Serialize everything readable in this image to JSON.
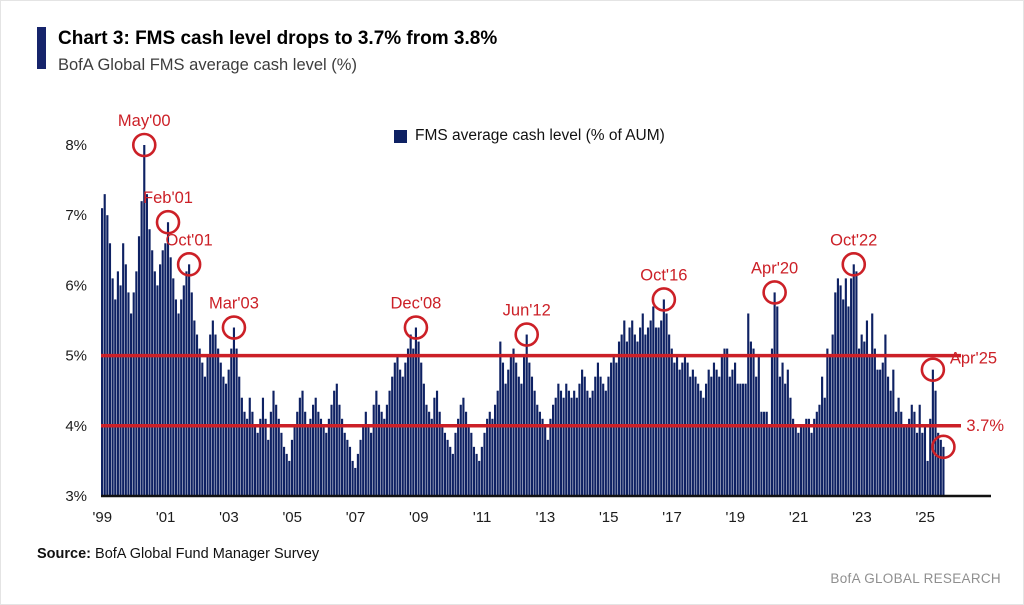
{
  "header": {
    "title": "Chart 3: FMS cash level drops to 3.7% from 3.8%",
    "subtitle": "BofA Global FMS average cash level (%)"
  },
  "legend": {
    "label": "FMS average cash level (% of AUM)"
  },
  "footer": {
    "source_label": "Source:",
    "source_text": " BofA Global Fund Manager Survey",
    "branding": "BofA GLOBAL RESEARCH"
  },
  "colors": {
    "bar": "#0e2163",
    "accent_red": "#cc2027",
    "title_accent": "#16246b"
  },
  "chart_data": {
    "type": "bar",
    "title": "FMS cash level drops to 3.7% from 3.8%",
    "xlabel": "",
    "ylabel": "",
    "ylim": [
      3,
      8
    ],
    "yticks": [
      3,
      4,
      5,
      6,
      7,
      8
    ],
    "x_start": "1999-01",
    "frequency": "monthly",
    "legend": [
      "FMS average cash level (% of AUM)"
    ],
    "bar_color": "#0e2163",
    "accent_color": "#cc2027",
    "reference_lines": [
      5.0,
      4.0
    ],
    "xticks": [
      {
        "label": "'99",
        "index": 0
      },
      {
        "label": "'01",
        "index": 24
      },
      {
        "label": "'03",
        "index": 48
      },
      {
        "label": "'05",
        "index": 72
      },
      {
        "label": "'07",
        "index": 96
      },
      {
        "label": "'09",
        "index": 120
      },
      {
        "label": "'11",
        "index": 144
      },
      {
        "label": "'13",
        "index": 168
      },
      {
        "label": "'15",
        "index": 192
      },
      {
        "label": "'17",
        "index": 216
      },
      {
        "label": "'19",
        "index": 240
      },
      {
        "label": "'21",
        "index": 264
      },
      {
        "label": "'23",
        "index": 288
      },
      {
        "label": "'25",
        "index": 312
      }
    ],
    "annotations": [
      {
        "label": "May'00",
        "index": 16,
        "value": 8.0,
        "placement": "above"
      },
      {
        "label": "Feb'01",
        "index": 25,
        "value": 6.9,
        "placement": "above"
      },
      {
        "label": "Oct'01",
        "index": 33,
        "value": 6.3,
        "placement": "above"
      },
      {
        "label": "Mar'03",
        "index": 50,
        "value": 5.4,
        "placement": "above"
      },
      {
        "label": "Dec'08",
        "index": 119,
        "value": 5.4,
        "placement": "above"
      },
      {
        "label": "Jun'12",
        "index": 161,
        "value": 5.3,
        "placement": "above"
      },
      {
        "label": "Oct'16",
        "index": 213,
        "value": 5.8,
        "placement": "above"
      },
      {
        "label": "Apr'20",
        "index": 255,
        "value": 5.9,
        "placement": "above"
      },
      {
        "label": "Oct'22",
        "index": 285,
        "value": 6.3,
        "placement": "above"
      },
      {
        "label": "Apr'25",
        "index": 315,
        "value": 4.8,
        "placement": "right",
        "dy": -12
      },
      {
        "label": "3.7%",
        "index": 319,
        "value": 3.7,
        "placement": "right",
        "dx": 6,
        "dy": -22
      }
    ],
    "values": [
      7.1,
      7.3,
      7.0,
      6.6,
      6.1,
      5.8,
      6.2,
      6.0,
      6.6,
      6.3,
      5.9,
      5.6,
      5.9,
      6.2,
      6.7,
      7.2,
      8.0,
      7.3,
      6.8,
      6.5,
      6.2,
      6.0,
      6.3,
      6.5,
      6.6,
      6.9,
      6.4,
      6.1,
      5.8,
      5.6,
      5.8,
      6.0,
      6.2,
      6.3,
      5.9,
      5.5,
      5.3,
      5.1,
      4.9,
      4.7,
      5.0,
      5.3,
      5.5,
      5.3,
      5.1,
      4.9,
      4.7,
      4.6,
      4.8,
      5.1,
      5.4,
      5.1,
      4.7,
      4.4,
      4.2,
      4.1,
      4.4,
      4.2,
      4.0,
      3.9,
      4.1,
      4.4,
      4.1,
      3.8,
      4.2,
      4.5,
      4.3,
      4.1,
      3.9,
      3.7,
      3.6,
      3.5,
      3.8,
      4.0,
      4.2,
      4.4,
      4.5,
      4.2,
      4.0,
      4.1,
      4.3,
      4.4,
      4.2,
      4.1,
      4.0,
      3.9,
      4.1,
      4.3,
      4.5,
      4.6,
      4.3,
      4.1,
      3.9,
      3.8,
      3.7,
      3.5,
      3.4,
      3.6,
      3.8,
      4.0,
      4.2,
      4.0,
      3.9,
      4.3,
      4.5,
      4.3,
      4.2,
      4.1,
      4.3,
      4.5,
      4.7,
      4.9,
      5.0,
      4.8,
      4.7,
      4.9,
      5.1,
      5.3,
      5.1,
      5.4,
      5.2,
      4.9,
      4.6,
      4.3,
      4.2,
      4.1,
      4.4,
      4.5,
      4.2,
      4.0,
      3.9,
      3.8,
      3.7,
      3.6,
      3.9,
      4.1,
      4.3,
      4.4,
      4.2,
      4.0,
      3.9,
      3.7,
      3.6,
      3.5,
      3.7,
      3.9,
      4.1,
      4.2,
      4.1,
      4.3,
      4.5,
      5.2,
      4.9,
      4.6,
      4.8,
      5.0,
      5.1,
      4.9,
      4.7,
      4.6,
      5.0,
      5.3,
      4.9,
      4.7,
      4.5,
      4.3,
      4.2,
      4.1,
      4.0,
      3.8,
      4.1,
      4.3,
      4.4,
      4.6,
      4.5,
      4.4,
      4.6,
      4.5,
      4.4,
      4.5,
      4.4,
      4.6,
      4.8,
      4.7,
      4.5,
      4.4,
      4.5,
      4.7,
      4.9,
      4.7,
      4.6,
      4.5,
      4.7,
      4.9,
      5.0,
      4.9,
      5.2,
      5.3,
      5.5,
      5.2,
      5.4,
      5.5,
      5.3,
      5.2,
      5.4,
      5.6,
      5.3,
      5.4,
      5.5,
      5.7,
      5.4,
      5.4,
      5.5,
      5.8,
      5.6,
      5.3,
      5.1,
      4.9,
      5.0,
      4.8,
      4.9,
      5.0,
      4.9,
      4.7,
      4.8,
      4.7,
      4.6,
      4.5,
      4.4,
      4.6,
      4.8,
      4.7,
      4.9,
      4.8,
      4.7,
      5.0,
      5.1,
      5.1,
      4.7,
      4.8,
      4.9,
      4.6,
      4.6,
      4.6,
      4.6,
      5.6,
      5.2,
      5.1,
      4.7,
      5.0,
      4.2,
      4.2,
      4.2,
      4.0,
      5.1,
      5.9,
      5.7,
      4.7,
      4.9,
      4.6,
      4.8,
      4.4,
      4.1,
      4.0,
      3.9,
      4.0,
      4.0,
      4.1,
      4.1,
      3.9,
      4.1,
      4.2,
      4.3,
      4.7,
      4.4,
      5.1,
      5.0,
      5.3,
      5.9,
      6.1,
      6.0,
      5.8,
      6.1,
      5.7,
      6.1,
      6.3,
      6.2,
      5.1,
      5.3,
      5.2,
      5.5,
      5.0,
      5.6,
      5.1,
      4.8,
      4.8,
      4.9,
      5.3,
      4.7,
      4.5,
      4.8,
      4.2,
      4.4,
      4.2,
      4.0,
      4.0,
      4.1,
      4.3,
      4.2,
      3.9,
      4.3,
      3.9,
      4.0,
      3.5,
      4.1,
      4.8,
      4.5,
      3.9,
      3.8,
      3.7
    ]
  }
}
